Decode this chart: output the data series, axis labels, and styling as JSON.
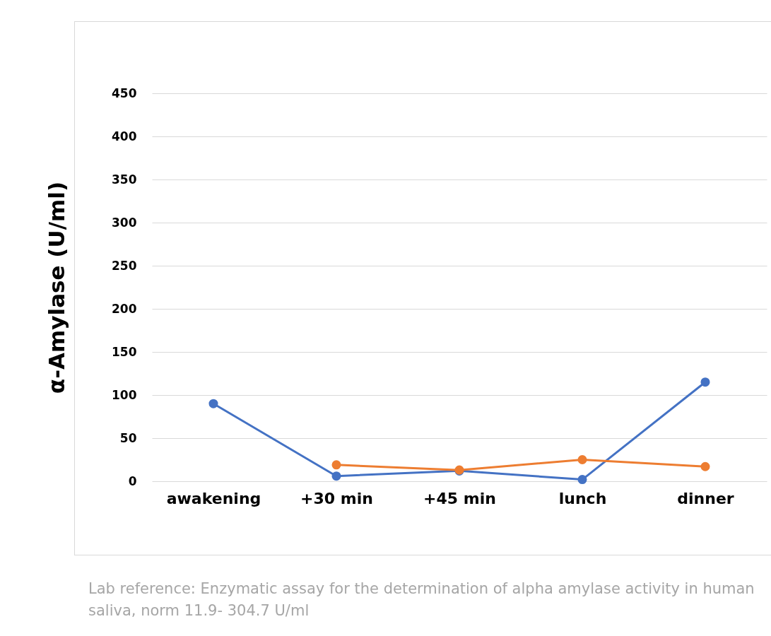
{
  "chart_data": {
    "type": "line",
    "ylabel": "α-Amylase (U/ml)",
    "categories": [
      "awakening",
      "+30 min",
      "+45 min",
      "lunch",
      "dinner"
    ],
    "series": [
      {
        "color": "#4472c4",
        "values": [
          90,
          6,
          12,
          2,
          115
        ]
      },
      {
        "color": "#ed7d31",
        "values": [
          null,
          19,
          13,
          25,
          17
        ]
      }
    ],
    "ylim": [
      0,
      450
    ],
    "yticks": [
      0,
      50,
      100,
      150,
      200,
      250,
      300,
      350,
      400,
      450
    ],
    "grid": "y",
    "marker": "circle",
    "line_style": "solid",
    "annotations": [
      "Lab reference: Enzymatic assay for the determination of alpha amylase activity in human saliva, norm 11.9- 304.7 U/ml"
    ]
  }
}
